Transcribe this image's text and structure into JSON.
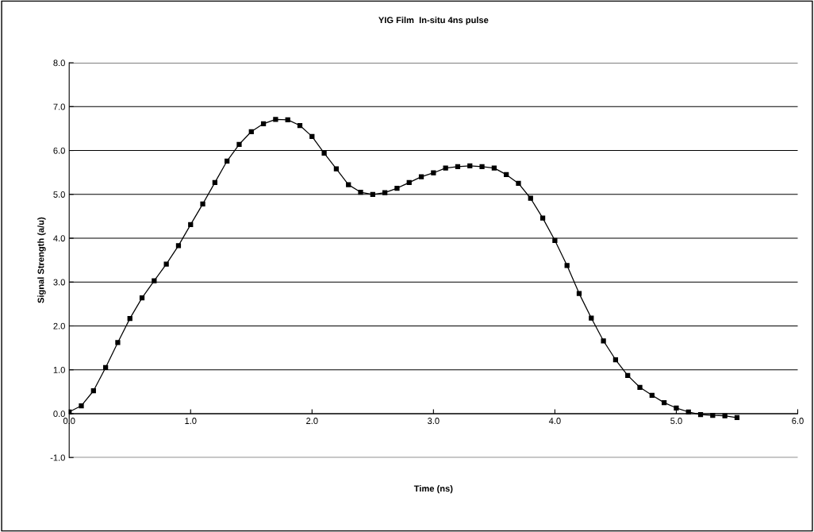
{
  "chart_data": {
    "type": "line",
    "title": "YIG Film  In-situ 4ns pulse",
    "xlabel": "Time (ns)",
    "ylabel": "Signal Strength (a/u)",
    "series": [
      {
        "color": "#000000",
        "marker": "square",
        "line_style": "solid",
        "x": [
          0.0,
          0.1,
          0.2,
          0.3,
          0.4,
          0.5,
          0.6,
          0.7,
          0.8,
          0.9,
          1.0,
          1.1,
          1.2,
          1.3,
          1.4,
          1.5,
          1.6,
          1.7,
          1.8,
          1.9,
          2.0,
          2.1,
          2.2,
          2.3,
          2.4,
          2.5,
          2.6,
          2.7,
          2.8,
          2.9,
          3.0,
          3.1,
          3.2,
          3.3,
          3.4,
          3.5,
          3.6,
          3.7,
          3.8,
          3.9,
          4.0,
          4.1,
          4.2,
          4.3,
          4.4,
          4.5,
          4.6,
          4.7,
          4.8,
          4.9,
          5.0,
          5.1,
          5.2,
          5.3,
          5.4,
          5.5
        ],
        "values": [
          0.04,
          0.18,
          0.52,
          1.05,
          1.62,
          2.17,
          2.64,
          3.03,
          3.41,
          3.83,
          4.31,
          4.78,
          5.27,
          5.76,
          6.14,
          6.43,
          6.61,
          6.71,
          6.7,
          6.57,
          6.32,
          5.94,
          5.58,
          5.22,
          5.05,
          5.0,
          5.04,
          5.14,
          5.27,
          5.4,
          5.49,
          5.6,
          5.63,
          5.65,
          5.63,
          5.6,
          5.45,
          5.25,
          4.91,
          4.46,
          3.95,
          3.38,
          2.74,
          2.18,
          1.66,
          1.23,
          0.87,
          0.6,
          0.42,
          0.25,
          0.13,
          0.04,
          -0.02,
          -0.04,
          -0.05,
          -0.09
        ]
      }
    ],
    "xlim": [
      0,
      6
    ],
    "xticks": [
      {
        "value": 0,
        "label": "0.0"
      },
      {
        "value": 1,
        "label": "1.0"
      },
      {
        "value": 2,
        "label": "2.0"
      },
      {
        "value": 3,
        "label": "3.0"
      },
      {
        "value": 4,
        "label": "4.0"
      },
      {
        "value": 5,
        "label": "5.0"
      },
      {
        "value": 6,
        "label": "6.0"
      }
    ],
    "ylim": [
      -1,
      8
    ],
    "yticks": [
      {
        "value": -1,
        "label": "-1.0"
      },
      {
        "value": 0,
        "label": "0.0"
      },
      {
        "value": 1,
        "label": "1.0"
      },
      {
        "value": 2,
        "label": "2.0"
      },
      {
        "value": 3,
        "label": "3.0"
      },
      {
        "value": 4,
        "label": "4.0"
      },
      {
        "value": 5,
        "label": "5.0"
      },
      {
        "value": 6,
        "label": "6.0"
      },
      {
        "value": 7,
        "label": "7.0"
      },
      {
        "value": 8,
        "label": "8.0"
      }
    ],
    "grid": "y"
  }
}
